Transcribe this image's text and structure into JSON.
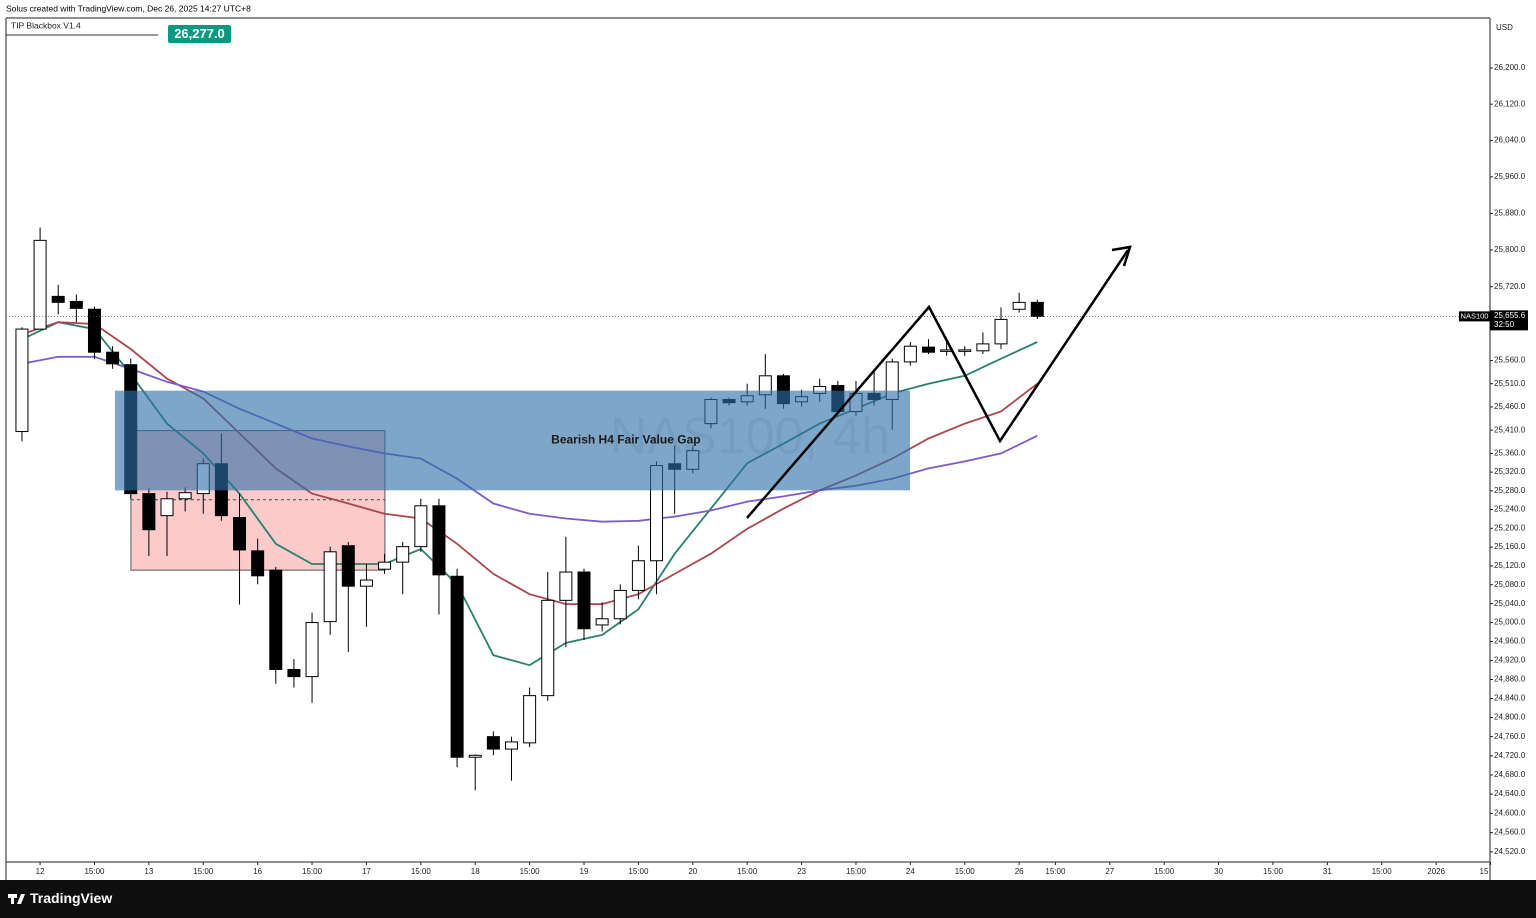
{
  "chart_data": {
    "type": "candlestick",
    "header": "Solus created with TradingView.com, Dec 26, 2025 14:27 UTC+8",
    "indicator": "TIP Blackbox V1.4",
    "indicator_value": {
      "value": 26277,
      "label": "26,277.0"
    },
    "currency": "USD",
    "watermark": "NAS100, 4h",
    "symbol": "NAS100",
    "last_price": {
      "value": 25655.6,
      "label": "25,655.6"
    },
    "countdown": "32:50",
    "brand": "TradingView",
    "log_scale": true,
    "ylim": [
      24499,
      26311
    ],
    "xlim": [
      -0.88,
      80.97
    ],
    "yticks": [
      {
        "value": 26200,
        "label": "26,200.0"
      },
      {
        "value": 26120,
        "label": "26,120.0"
      },
      {
        "value": 26040,
        "label": "26,040.0"
      },
      {
        "value": 25960,
        "label": "25,960.0"
      },
      {
        "value": 25880,
        "label": "25,880.0"
      },
      {
        "value": 25800,
        "label": "25,800.0"
      },
      {
        "value": 25720,
        "label": "25,720.0"
      },
      {
        "value": 25560,
        "label": "25,560.0"
      },
      {
        "value": 25510,
        "label": "25,510.0"
      },
      {
        "value": 25460,
        "label": "25,460.0"
      },
      {
        "value": 25410,
        "label": "25,410.0"
      },
      {
        "value": 25360,
        "label": "25,360.0"
      },
      {
        "value": 25320,
        "label": "25,320.0"
      },
      {
        "value": 25280,
        "label": "25,280.0"
      },
      {
        "value": 25240,
        "label": "25,240.0"
      },
      {
        "value": 25200,
        "label": "25,200.0"
      },
      {
        "value": 25160,
        "label": "25,160.0"
      },
      {
        "value": 25120,
        "label": "25,120.0"
      },
      {
        "value": 25080,
        "label": "25,080.0"
      },
      {
        "value": 25040,
        "label": "25,040.0"
      },
      {
        "value": 25000,
        "label": "25,000.0"
      },
      {
        "value": 24960,
        "label": "24,960.0"
      },
      {
        "value": 24920,
        "label": "24,920.0"
      },
      {
        "value": 24880,
        "label": "24,880.0"
      },
      {
        "value": 24840,
        "label": "24,840.0"
      },
      {
        "value": 24800,
        "label": "24,800.0"
      },
      {
        "value": 24760,
        "label": "24,760.0"
      },
      {
        "value": 24720,
        "label": "24,720.0"
      },
      {
        "value": 24680,
        "label": "24,680.0"
      },
      {
        "value": 24640,
        "label": "24,640.0"
      },
      {
        "value": 24600,
        "label": "24,600.0"
      },
      {
        "value": 24560,
        "label": "24,560.0"
      },
      {
        "value": 24520,
        "label": "24,520.0"
      }
    ],
    "xticks": [
      {
        "value": 1,
        "label": "12"
      },
      {
        "value": 4,
        "label": "15:00"
      },
      {
        "value": 7,
        "label": "13"
      },
      {
        "value": 10,
        "label": "15:00"
      },
      {
        "value": 13,
        "label": "16"
      },
      {
        "value": 16,
        "label": "15:00"
      },
      {
        "value": 19,
        "label": "17"
      },
      {
        "value": 22,
        "label": "15:00"
      },
      {
        "value": 25,
        "label": "18"
      },
      {
        "value": 28,
        "label": "15:00"
      },
      {
        "value": 31,
        "label": "19"
      },
      {
        "value": 34,
        "label": "15:00"
      },
      {
        "value": 37,
        "label": "20"
      },
      {
        "value": 40,
        "label": "15:00"
      },
      {
        "value": 43,
        "label": "23"
      },
      {
        "value": 46,
        "label": "15:00"
      },
      {
        "value": 49,
        "label": "24"
      },
      {
        "value": 52,
        "label": "15:00"
      },
      {
        "value": 55,
        "label": "26"
      },
      {
        "value": 57,
        "label": "15:00"
      },
      {
        "value": 60,
        "label": "27"
      },
      {
        "value": 63,
        "label": "15:00"
      },
      {
        "value": 66,
        "label": "30"
      },
      {
        "value": 69,
        "label": "15:00"
      },
      {
        "value": 72,
        "label": "31"
      },
      {
        "value": 75,
        "label": "15:00"
      },
      {
        "value": 78,
        "label": "2026"
      },
      {
        "value": 81,
        "label": "15"
      }
    ],
    "x": [
      0,
      1,
      2,
      3,
      4,
      5,
      6,
      7,
      8,
      9,
      10,
      11,
      12,
      13,
      14,
      15,
      16,
      17,
      18,
      19,
      20,
      21,
      22,
      23,
      24,
      25,
      26,
      27,
      28,
      29,
      30,
      31,
      32,
      33,
      34,
      35,
      36,
      37,
      38,
      39,
      40,
      41,
      42,
      43,
      44,
      45,
      46,
      47,
      48,
      49,
      50,
      51,
      52,
      53,
      54,
      55,
      56
    ],
    "open": [
      25407,
      25628,
      25699,
      25688,
      25671,
      25578,
      25551,
      25274,
      25227,
      25263,
      25274,
      25338,
      25223,
      25152,
      25111,
      24901,
      24886,
      25002,
      25163,
      25077,
      25113,
      25128,
      25161,
      25248,
      25098,
      24717,
      24760,
      24734,
      24747,
      24846,
      25047,
      25107,
      24995,
      25008,
      25068,
      25131,
      25338,
      25326,
      25424,
      25476,
      25471,
      25486,
      25527,
      25471,
      25489,
      25506,
      25450,
      25489,
      25476,
      25557,
      25589,
      25581,
      25581,
      25581,
      25596,
      25671,
      25686
    ],
    "high": [
      25632,
      25849,
      25724,
      25703,
      25677,
      25591,
      25564,
      25285,
      25278,
      25287,
      25349,
      25403,
      25274,
      25178,
      25118,
      24923,
      25021,
      25161,
      25171,
      25124,
      25146,
      25171,
      25263,
      25263,
      25114,
      24723,
      24771,
      24760,
      24863,
      25107,
      25182,
      25114,
      25043,
      25081,
      25163,
      25343,
      25377,
      25377,
      25480,
      25480,
      25510,
      25574,
      25531,
      25497,
      25521,
      25516,
      25516,
      25536,
      25564,
      25600,
      25606,
      25600,
      25591,
      25621,
      25675,
      25707,
      25692
    ],
    "low": [
      25386,
      25628,
      25660,
      25643,
      25563,
      25542,
      25263,
      25141,
      25141,
      25236,
      25231,
      25216,
      25038,
      25081,
      24871,
      24863,
      24831,
      24974,
      24938,
      24991,
      25103,
      25060,
      25150,
      25017,
      24696,
      24648,
      24721,
      24668,
      24738,
      24835,
      24948,
      24963,
      24981,
      24996,
      25049,
      25060,
      25231,
      25317,
      25414,
      25463,
      25463,
      25456,
      25456,
      25461,
      25471,
      25441,
      25441,
      25463,
      25411,
      25549,
      25574,
      25570,
      25570,
      25574,
      25585,
      25664,
      25650
    ],
    "close": [
      25628,
      25821,
      25686,
      25673,
      25578,
      25553,
      25274,
      25197,
      25263,
      25276,
      25338,
      25227,
      25154,
      25099,
      24901,
      24886,
      25000,
      25150,
      25077,
      25090,
      25128,
      25161,
      25248,
      25101,
      24717,
      24721,
      24734,
      24749,
      24846,
      25047,
      25107,
      24987,
      25008,
      25068,
      25131,
      25334,
      25326,
      25366,
      25476,
      25469,
      25484,
      25527,
      25467,
      25482,
      25504,
      25450,
      25489,
      25476,
      25557,
      25591,
      25578,
      25583,
      25583,
      25596,
      25649,
      25686,
      25655.6
    ],
    "series": [
      {
        "color": "#2b7f6e",
        "x": [
          0,
          2,
          4,
          6,
          8,
          10,
          12,
          14,
          16,
          18,
          20,
          22,
          24,
          26,
          28,
          30,
          32,
          34,
          36,
          38,
          40,
          42,
          44,
          46,
          48,
          50,
          52,
          54,
          56
        ],
        "values": [
          25606,
          25643,
          25628,
          25531,
          25424,
          25360,
          25274,
          25167,
          25124,
          25124,
          25124,
          25156,
          25081,
          24931,
          24910,
          24957,
          24974,
          25028,
          25146,
          25242,
          25339,
          25381,
          25424,
          25456,
          25489,
          25510,
          25527,
          25564,
          25600
        ]
      },
      {
        "color": "#a8474f",
        "x": [
          0,
          2,
          4,
          6,
          8,
          10,
          12,
          14,
          16,
          18,
          20,
          22,
          24,
          26,
          28,
          30,
          32,
          34,
          36,
          38,
          40,
          42,
          44,
          46,
          48,
          50,
          52,
          54,
          56
        ],
        "values": [
          25617,
          25643,
          25639,
          25585,
          25521,
          25478,
          25403,
          25328,
          25274,
          25253,
          25231,
          25221,
          25167,
          25103,
          25060,
          25039,
          25039,
          25060,
          25103,
          25146,
          25199,
          25242,
          25281,
          25313,
          25349,
          25392,
          25424,
          25450,
          25510
        ]
      },
      {
        "color": "#7e5bc9",
        "x": [
          0,
          2,
          4,
          6,
          8,
          10,
          12,
          14,
          16,
          18,
          20,
          22,
          24,
          26,
          28,
          30,
          32,
          34,
          36,
          38,
          40,
          42,
          44,
          46,
          48,
          50,
          52,
          54,
          56
        ],
        "values": [
          25553,
          25568,
          25568,
          25542,
          25514,
          25493,
          25456,
          25424,
          25392,
          25375,
          25360,
          25349,
          25306,
          25253,
          25231,
          25221,
          25214,
          25216,
          25225,
          25238,
          25257,
          25268,
          25281,
          25291,
          25306,
          25328,
          25343,
          25360,
          25398
        ]
      }
    ],
    "zones": [
      {
        "x": [
          6.01,
          20.02
        ],
        "y": [
          25111,
          25409
        ],
        "midline": 25261,
        "color": "#f9a8a8"
      },
      {
        "x": [
          5.13,
          48.98
        ],
        "y": [
          25281,
          25495
        ],
        "color": "#2f6fa8",
        "label": "Bearish H4 Fair Value Gap"
      }
    ]
  }
}
